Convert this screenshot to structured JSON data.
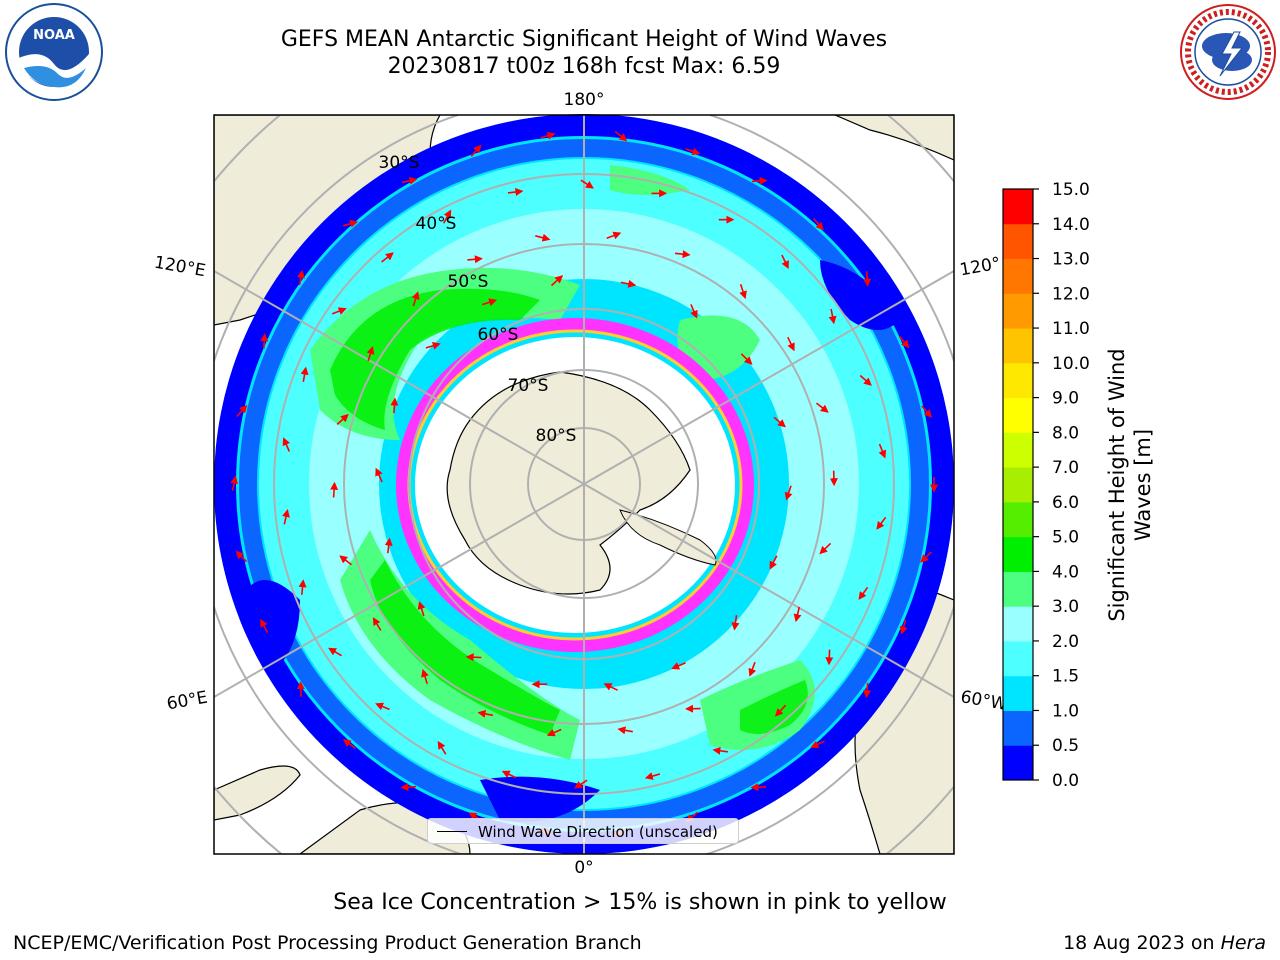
{
  "header": {
    "title_line1": "GEFS MEAN Antarctic Significant Height of Wind Waves",
    "title_line2": "20230817 t00z 168h fcst   Max: 6.59"
  },
  "logos": {
    "left": "NOAA",
    "left_ring_text": "NATIONAL OCEANIC AND ATMOSPHERIC ADMINISTRATION · U.S. DEPARTMENT OF COMMERCE",
    "right_ring_text": "NATIONAL WEATHER SERVICE"
  },
  "map": {
    "projection": "south-polar-stereographic",
    "meridian_labels": [
      "180°",
      "120°E",
      "120°",
      "60°E",
      "60°W",
      "0°"
    ],
    "parallel_labels": [
      "30°S",
      "40°S",
      "50°S",
      "60°S",
      "70°S",
      "80°S"
    ],
    "legend_label": "Wind Wave Direction (unscaled)",
    "arrow_color": "#ff0000",
    "land_color": "#efedd9",
    "seaice_colors": [
      "#ff33ff",
      "#ffcc33"
    ]
  },
  "colorbar": {
    "label_line1": "Significant Height of Wind",
    "label_line2": "Waves [m]",
    "ticks": [
      "0.0",
      "0.5",
      "1.0",
      "1.5",
      "2.0",
      "3.0",
      "4.0",
      "5.0",
      "6.0",
      "7.0",
      "8.0",
      "9.0",
      "10.0",
      "11.0",
      "12.0",
      "13.0",
      "14.0",
      "15.0"
    ],
    "colors": [
      "#0000ff",
      "#0a66ff",
      "#00e5ff",
      "#4dffff",
      "#99ffff",
      "#4dff80",
      "#00ee00",
      "#55ee00",
      "#a8ee00",
      "#ccff00",
      "#ffff00",
      "#ffe800",
      "#ffc400",
      "#ff9a00",
      "#ff7700",
      "#ff5500",
      "#ff0000"
    ]
  },
  "note": "Sea Ice Concentration > 15% is shown in pink to yellow",
  "footer": {
    "left": "NCEP/EMC/Verification Post Processing Product Generation Branch",
    "right_prefix": "18 Aug 2023 on ",
    "right_host": "Hera"
  }
}
